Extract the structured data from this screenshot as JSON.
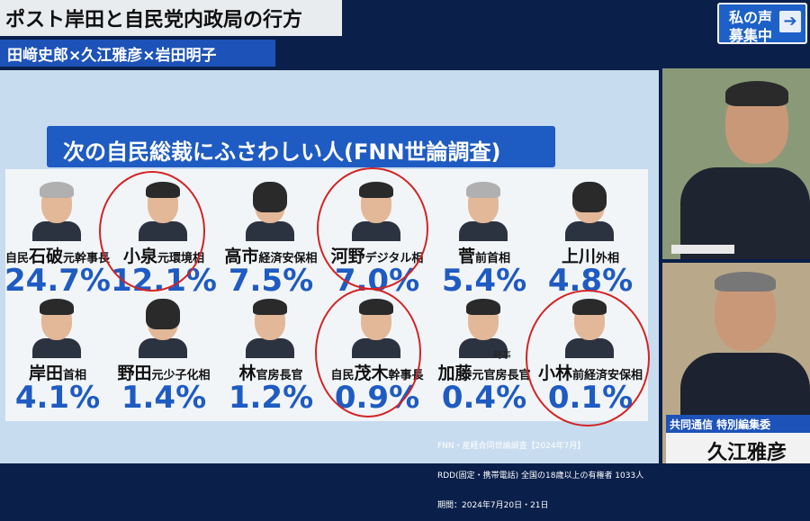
{
  "header": {
    "title": "ポスト岸田と自民党内政局の行方",
    "panel": "田﨑史郎×久江雅彦×岩田明子",
    "voice_line1": "私の声",
    "voice_line2": "募集中"
  },
  "board": {
    "heading": "次の自民総裁にふさわしい人(FNN世論調査)",
    "candidates": [
      {
        "prefix": "自民",
        "name": "石破",
        "role": "元幹事長",
        "percent": "24.7%"
      },
      {
        "prefix": "",
        "name": "小泉",
        "role": "元環境相",
        "percent": "12.1%"
      },
      {
        "prefix": "",
        "name": "高市",
        "role": "経済安保相",
        "percent": "7.5%"
      },
      {
        "prefix": "",
        "name": "河野",
        "role": "デジタル相",
        "percent": "7.0%"
      },
      {
        "prefix": "",
        "name": "菅",
        "role": "前首相",
        "percent": "5.4%"
      },
      {
        "prefix": "",
        "name": "上川",
        "role": "外相",
        "percent": "4.8%"
      },
      {
        "prefix": "",
        "name": "岸田",
        "role": "首相",
        "percent": "4.1%"
      },
      {
        "prefix": "",
        "name": "野田",
        "role": "元少子化相",
        "percent": "1.4%"
      },
      {
        "prefix": "",
        "name": "林",
        "role": "官房長官",
        "percent": "1.2%"
      },
      {
        "prefix": "自民",
        "name": "茂木",
        "role": "幹事長",
        "percent": "0.9%"
      },
      {
        "prefix": "",
        "name": "加藤",
        "role": "元官房長官",
        "percent": "0.4%"
      },
      {
        "prefix": "",
        "name": "小林",
        "role": "前経済安保相",
        "percent": "0.1%"
      }
    ],
    "note_tag": "時事",
    "source_lines": [
      "FNN・産経合同世論調査【2024年7月】",
      "RDD(固定・携帯電話) 全国の18歳以上の有権者 1033人",
      "期間：2024年7月20日・21日"
    ]
  },
  "caption": {
    "org": "共同通信 特別編集委",
    "name": "久江雅彦"
  },
  "colors": {
    "accent": "#1e5bc2",
    "circle": "#d32424"
  }
}
